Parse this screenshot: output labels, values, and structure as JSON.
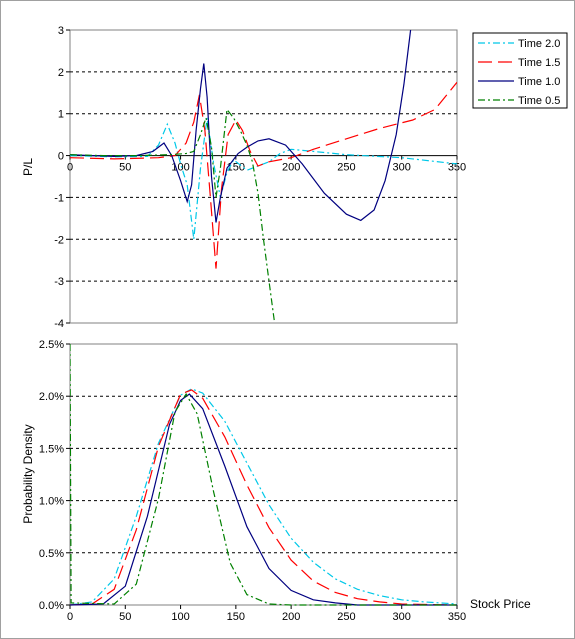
{
  "chart_data": [
    {
      "type": "line",
      "ylabel": "P/L",
      "xlabel": "",
      "xlim": [
        0,
        350
      ],
      "ylim": [
        -4,
        3
      ],
      "x_ticks": [
        0,
        50,
        100,
        150,
        200,
        250,
        300,
        350
      ],
      "y_ticks": [
        3,
        2,
        1,
        0,
        -1,
        -2,
        -3,
        -4
      ],
      "grid": "horizontal dashed",
      "legend": "top-right",
      "series": [
        {
          "name": "Time 2.0",
          "color": "#00c8e8",
          "dash": "7 3 2 3",
          "points": [
            [
              0,
              0
            ],
            [
              40,
              -0.03
            ],
            [
              70,
              -0.02
            ],
            [
              80,
              0.25
            ],
            [
              88,
              0.75
            ],
            [
              95,
              0.3
            ],
            [
              100,
              -0.2
            ],
            [
              106,
              -0.7
            ],
            [
              112,
              -2.0
            ],
            [
              118,
              -0.3
            ],
            [
              124,
              0.9
            ],
            [
              130,
              -0.2
            ],
            [
              136,
              -1.0
            ],
            [
              142,
              -0.4
            ],
            [
              148,
              -0.1
            ],
            [
              160,
              -0.35
            ],
            [
              170,
              -0.25
            ],
            [
              180,
              -0.15
            ],
            [
              190,
              0.05
            ],
            [
              200,
              0.15
            ],
            [
              220,
              0.1
            ],
            [
              250,
              0.02
            ],
            [
              300,
              -0.05
            ],
            [
              350,
              -0.2
            ]
          ]
        },
        {
          "name": "Time 1.5",
          "color": "#ff0000",
          "dash": "14 6",
          "points": [
            [
              0,
              -0.05
            ],
            [
              40,
              -0.08
            ],
            [
              80,
              -0.05
            ],
            [
              95,
              0.0
            ],
            [
              105,
              0.3
            ],
            [
              112,
              0.8
            ],
            [
              117,
              1.45
            ],
            [
              122,
              0.6
            ],
            [
              127,
              -1.0
            ],
            [
              132,
              -2.7
            ],
            [
              137,
              -0.8
            ],
            [
              143,
              0.5
            ],
            [
              150,
              0.85
            ],
            [
              156,
              0.6
            ],
            [
              163,
              0.1
            ],
            [
              170,
              -0.25
            ],
            [
              180,
              -0.15
            ],
            [
              200,
              -0.05
            ],
            [
              220,
              0.15
            ],
            [
              250,
              0.4
            ],
            [
              280,
              0.65
            ],
            [
              310,
              0.85
            ],
            [
              330,
              1.1
            ],
            [
              350,
              1.75
            ]
          ]
        },
        {
          "name": "Time 1.0",
          "color": "#000080",
          "dash": "",
          "points": [
            [
              0,
              0.02
            ],
            [
              20,
              0.0
            ],
            [
              40,
              -0.02
            ],
            [
              60,
              0.0
            ],
            [
              75,
              0.1
            ],
            [
              85,
              0.3
            ],
            [
              92,
              0.0
            ],
            [
              100,
              -0.6
            ],
            [
              106,
              -1.1
            ],
            [
              110,
              -0.7
            ],
            [
              114,
              0.6
            ],
            [
              118,
              1.6
            ],
            [
              121,
              2.2
            ],
            [
              124,
              1.4
            ],
            [
              128,
              -0.5
            ],
            [
              132,
              -1.6
            ],
            [
              136,
              -1.0
            ],
            [
              142,
              -0.3
            ],
            [
              152,
              0.05
            ],
            [
              160,
              0.2
            ],
            [
              170,
              0.35
            ],
            [
              180,
              0.4
            ],
            [
              195,
              0.25
            ],
            [
              210,
              -0.2
            ],
            [
              230,
              -0.9
            ],
            [
              250,
              -1.4
            ],
            [
              263,
              -1.55
            ],
            [
              275,
              -1.3
            ],
            [
              285,
              -0.6
            ],
            [
              295,
              0.5
            ],
            [
              302,
              1.7
            ],
            [
              308,
              3.0
            ]
          ]
        },
        {
          "name": "Time 0.5",
          "color": "#008000",
          "dash": "7 3 2 3",
          "points": [
            [
              0,
              0.02
            ],
            [
              30,
              0.0
            ],
            [
              60,
              0.0
            ],
            [
              90,
              0.02
            ],
            [
              105,
              0.05
            ],
            [
              112,
              0.1
            ],
            [
              118,
              0.5
            ],
            [
              123,
              0.9
            ],
            [
              128,
              0.2
            ],
            [
              132,
              -1.0
            ],
            [
              136,
              -0.3
            ],
            [
              142,
              1.1
            ],
            [
              148,
              0.9
            ],
            [
              154,
              0.6
            ],
            [
              160,
              0.25
            ],
            [
              165,
              -0.15
            ],
            [
              170,
              -0.9
            ],
            [
              175,
              -2.0
            ],
            [
              180,
              -3.0
            ],
            [
              185,
              -4.0
            ]
          ]
        }
      ]
    },
    {
      "type": "line",
      "ylabel": "Probability Density",
      "xlabel": "Stock Price",
      "xlim": [
        0,
        350
      ],
      "ylim": [
        0,
        0.025
      ],
      "x_ticks": [
        0,
        50,
        100,
        150,
        200,
        250,
        300,
        350
      ],
      "y_ticks": [
        "2.5%",
        "2.0%",
        "1.5%",
        "1.0%",
        "0.5%",
        "0.0%"
      ],
      "y_tick_values": [
        0.025,
        0.02,
        0.015,
        0.01,
        0.005,
        0
      ],
      "grid": "horizontal dashed",
      "series": [
        {
          "name": "Time 2.0",
          "color": "#00c8e8",
          "dash": "7 3 2 3",
          "points": [
            [
              0,
              0
            ],
            [
              20,
              0.0003
            ],
            [
              40,
              0.0025
            ],
            [
              60,
              0.0085
            ],
            [
              80,
              0.0155
            ],
            [
              100,
              0.0201
            ],
            [
              110,
              0.0207
            ],
            [
              120,
              0.0203
            ],
            [
              140,
              0.0176
            ],
            [
              160,
              0.0136
            ],
            [
              180,
              0.0096
            ],
            [
              200,
              0.0064
            ],
            [
              220,
              0.0041
            ],
            [
              240,
              0.0025
            ],
            [
              260,
              0.0015
            ],
            [
              280,
              0.0009
            ],
            [
              300,
              0.0005
            ],
            [
              320,
              0.0003
            ],
            [
              350,
              0.0001
            ]
          ]
        },
        {
          "name": "Time 1.5",
          "color": "#ff0000",
          "dash": "14 6",
          "points": [
            [
              0,
              0
            ],
            [
              20,
              0.0001
            ],
            [
              40,
              0.0015
            ],
            [
              60,
              0.0072
            ],
            [
              80,
              0.0152
            ],
            [
              100,
              0.0202
            ],
            [
              110,
              0.0206
            ],
            [
              120,
              0.0198
            ],
            [
              140,
              0.0161
            ],
            [
              160,
              0.0115
            ],
            [
              180,
              0.0074
            ],
            [
              200,
              0.0043
            ],
            [
              220,
              0.0023
            ],
            [
              240,
              0.0012
            ],
            [
              260,
              0.0006
            ],
            [
              280,
              0.0003
            ],
            [
              300,
              0.0001
            ],
            [
              350,
              0
            ]
          ]
        },
        {
          "name": "Time 1.0",
          "color": "#000080",
          "dash": "",
          "points": [
            [
              0,
              0
            ],
            [
              30,
              0.0001
            ],
            [
              50,
              0.0018
            ],
            [
              70,
              0.0085
            ],
            [
              90,
              0.0173
            ],
            [
              100,
              0.0196
            ],
            [
              108,
              0.0202
            ],
            [
              120,
              0.0188
            ],
            [
              140,
              0.0133
            ],
            [
              160,
              0.0075
            ],
            [
              180,
              0.0035
            ],
            [
              200,
              0.0014
            ],
            [
              220,
              0.0005
            ],
            [
              240,
              0.0002
            ],
            [
              260,
              0
            ],
            [
              350,
              0
            ]
          ]
        },
        {
          "name": "Time 0.5",
          "color": "#008000",
          "dash": "7 3 2 3",
          "points": [
            [
              0,
              0.025
            ],
            [
              1,
              0.0002
            ],
            [
              40,
              0.0001
            ],
            [
              60,
              0.002
            ],
            [
              80,
              0.0102
            ],
            [
              95,
              0.0185
            ],
            [
              105,
              0.0202
            ],
            [
              115,
              0.0183
            ],
            [
              130,
              0.0108
            ],
            [
              145,
              0.004
            ],
            [
              160,
              0.001
            ],
            [
              180,
              0.0001
            ],
            [
              200,
              0
            ],
            [
              350,
              0
            ]
          ]
        }
      ]
    }
  ]
}
